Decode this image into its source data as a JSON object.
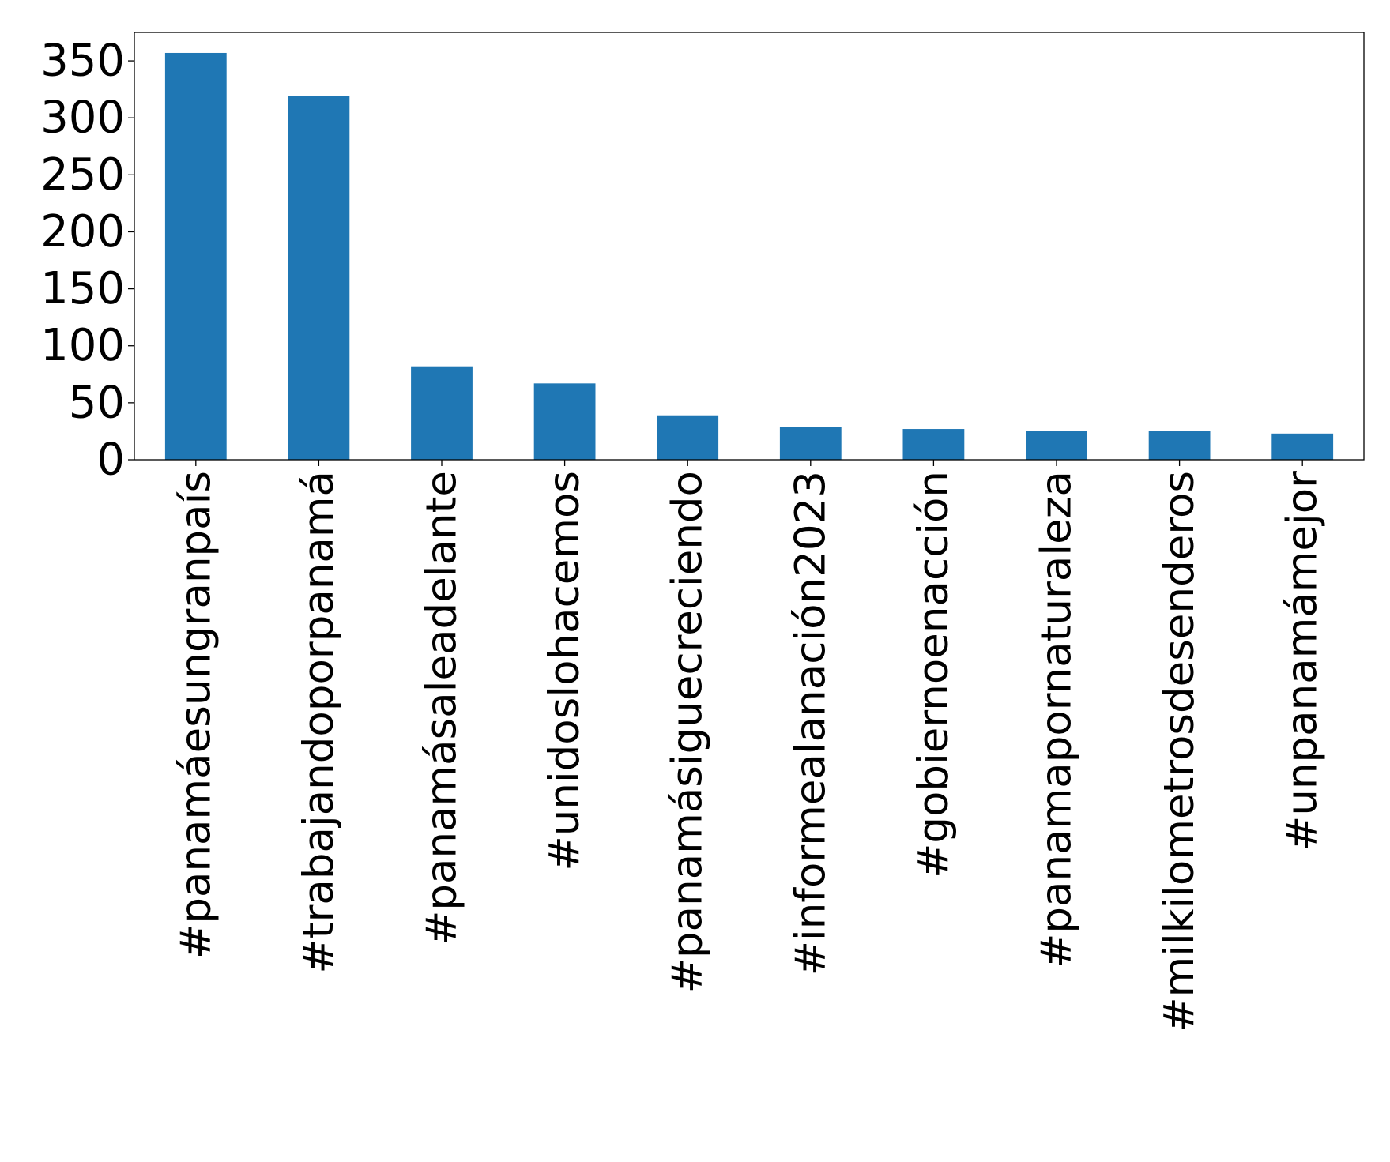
{
  "chart_data": {
    "type": "bar",
    "title": "",
    "xlabel": "",
    "ylabel": "",
    "categories": [
      "#panamáesungranpaís",
      "#trabajandoporpanamá",
      "#panamásaleadelante",
      "#unidoslohacemos",
      "#panamásiguecreciendo",
      "#informealanación2023",
      "#gobiernoenacción",
      "#panamapornaturaleza",
      "#milkilometrosdesenderos",
      "#unpanamámejor"
    ],
    "values": [
      357,
      319,
      82,
      67,
      39,
      29,
      27,
      25,
      25,
      23
    ],
    "ylim": [
      0,
      375
    ],
    "yticks": [
      0,
      50,
      100,
      150,
      200,
      250,
      300,
      350
    ],
    "bar_color": "#1f77b4",
    "grid": false,
    "legend": "none"
  }
}
